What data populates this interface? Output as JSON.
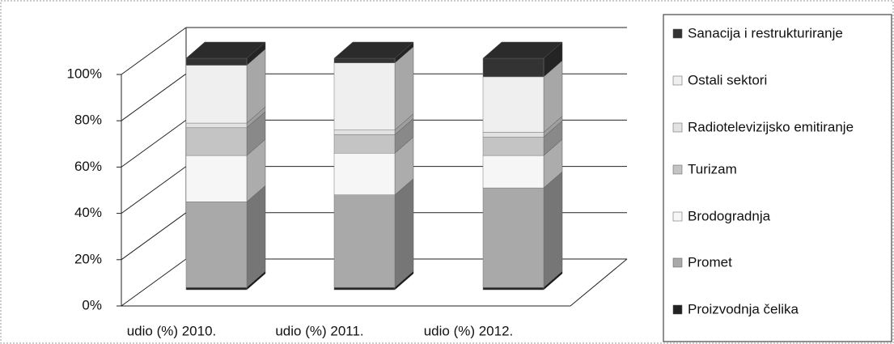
{
  "chart_data": {
    "type": "bar",
    "stacked": true,
    "three_d": true,
    "categories": [
      "udio (%) 2010.",
      "udio (%) 2011.",
      "udio (%) 2012."
    ],
    "series": [
      {
        "name": "Proizvodnja čelika",
        "color": "#222222",
        "values": [
          1,
          1,
          1
        ]
      },
      {
        "name": "Promet",
        "color": "#a9a9a9",
        "values": [
          37,
          40,
          43
        ]
      },
      {
        "name": "Brodogradnja",
        "color": "#f6f6f6",
        "values": [
          20,
          18,
          14
        ]
      },
      {
        "name": "Turizam",
        "color": "#c4c4c4",
        "values": [
          12,
          8,
          8
        ]
      },
      {
        "name": "Radiotelevizijsko emitiranje",
        "color": "#e2e2e2",
        "values": [
          2,
          2,
          2
        ]
      },
      {
        "name": "Ostali sektori",
        "color": "#efefef",
        "values": [
          25,
          29,
          24
        ]
      },
      {
        "name": "Sanacija i restrukturiranje",
        "color": "#333333",
        "values": [
          3,
          2,
          8
        ]
      }
    ],
    "ylim": [
      0,
      100
    ],
    "yticks": [
      {
        "value": 0,
        "label": "0%"
      },
      {
        "value": 20,
        "label": "20%"
      },
      {
        "value": 40,
        "label": "40%"
      },
      {
        "value": 60,
        "label": "60%"
      },
      {
        "value": 80,
        "label": "80%"
      },
      {
        "value": 100,
        "label": "100%"
      }
    ],
    "grid": true,
    "legend": "right"
  }
}
